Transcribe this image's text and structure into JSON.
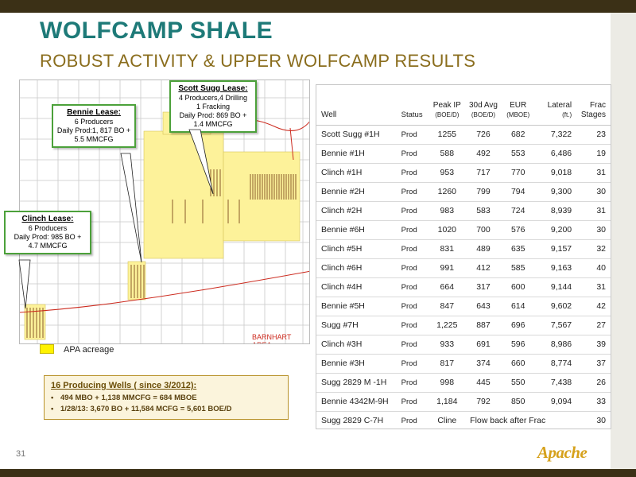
{
  "slide": {
    "title": "WOLFCAMP SHALE",
    "subtitle": "ROBUST ACTIVITY & UPPER WOLFCAMP RESULTS",
    "page_number": "31",
    "logo_text": "Apache",
    "accent_color": "#1e7a78",
    "subtitle_color": "#8a6d1d",
    "bar_color": "#3b3016"
  },
  "map": {
    "area_label": "BARNHART AREA",
    "legend_label": "APA acreage",
    "legend_color": "#fff200",
    "callouts": [
      {
        "title": "Scott Sugg Lease:",
        "lines": [
          "4 Producers,4 Drilling",
          "1 Fracking",
          "Daily Prod: 869 BO +",
          "1.4 MMCFG"
        ]
      },
      {
        "title": "Bennie Lease:",
        "lines": [
          "6 Producers",
          "Daily Prod:1, 817 BO +",
          "5.5 MMCFG"
        ]
      },
      {
        "title": "Clinch Lease:",
        "lines": [
          "6 Producers",
          "Daily Prod:  985 BO +",
          "4.7 MMCFG"
        ]
      }
    ]
  },
  "summary": {
    "heading": "16 Producing Wells ( since 3/2012):",
    "bullets": [
      "494 MBO + 1,138 MMCFG = 684 MBOE",
      "1/28/13:  3,670 BO + 11,584 MCFG = 5,601 BOE/D"
    ]
  },
  "table": {
    "headers": {
      "well": "Well",
      "status": "Status",
      "peak_ip": "Peak IP",
      "peak_ip_unit": "(BOE/D)",
      "avg30": "30d Avg",
      "avg30_unit": "(BOE/D)",
      "eur": "EUR",
      "eur_unit": "(MBOE)",
      "lateral": "Lateral",
      "lateral_unit": "(ft.)",
      "frac": "Frac",
      "frac2": "Stages"
    },
    "rows": [
      {
        "well": "Scott Sugg #1H",
        "status": "Prod",
        "peak_ip": "1255",
        "avg30": "726",
        "eur": "682",
        "lateral": "7,322",
        "frac": "23"
      },
      {
        "well": "Bennie #1H",
        "status": "Prod",
        "peak_ip": "588",
        "avg30": "492",
        "eur": "553",
        "lateral": "6,486",
        "frac": "19"
      },
      {
        "well": "Clinch #1H",
        "status": "Prod",
        "peak_ip": "953",
        "avg30": "717",
        "eur": "770",
        "lateral": "9,018",
        "frac": "31"
      },
      {
        "well": "Bennie #2H",
        "status": "Prod",
        "peak_ip": "1260",
        "avg30": "799",
        "eur": "794",
        "lateral": "9,300",
        "frac": "30"
      },
      {
        "well": "Clinch #2H",
        "status": "Prod",
        "peak_ip": "983",
        "avg30": "583",
        "eur": "724",
        "lateral": "8,939",
        "frac": "31"
      },
      {
        "well": "Bennie #6H",
        "status": "Prod",
        "peak_ip": "1020",
        "avg30": "700",
        "eur": "576",
        "lateral": "9,200",
        "frac": "30"
      },
      {
        "well": "Clinch #5H",
        "status": "Prod",
        "peak_ip": "831",
        "avg30": "489",
        "eur": "635",
        "lateral": "9,157",
        "frac": "32"
      },
      {
        "well": "Clinch #6H",
        "status": "Prod",
        "peak_ip": "991",
        "avg30": "412",
        "eur": "585",
        "lateral": "9,163",
        "frac": "40"
      },
      {
        "well": "Clinch #4H",
        "status": "Prod",
        "peak_ip": "664",
        "avg30": "317",
        "eur": "600",
        "lateral": "9,144",
        "frac": "31"
      },
      {
        "well": "Bennie #5H",
        "status": "Prod",
        "peak_ip": "847",
        "avg30": "643",
        "eur": "614",
        "lateral": "9,602",
        "frac": "42"
      },
      {
        "well": "Sugg #7H",
        "status": "Prod",
        "peak_ip": "1,225",
        "avg30": "887",
        "eur": "696",
        "lateral": "7,567",
        "frac": "27"
      },
      {
        "well": "Clinch #3H",
        "status": "Prod",
        "peak_ip": "933",
        "avg30": "691",
        "eur": "596",
        "lateral": "8,986",
        "frac": "39"
      },
      {
        "well": "Bennie #3H",
        "status": "Prod",
        "peak_ip": "817",
        "avg30": "374",
        "eur": "660",
        "lateral": "8,774",
        "frac": "37"
      },
      {
        "well": "Sugg 2829 M -1H",
        "status": "Prod",
        "peak_ip": "998",
        "avg30": "445",
        "eur": "550",
        "lateral": "7,438",
        "frac": "26"
      },
      {
        "well": "Bennie 4342M-9H",
        "status": "Prod",
        "peak_ip": "1,184",
        "avg30": "792",
        "eur": "850",
        "lateral": "9,094",
        "frac": "33"
      }
    ],
    "last_row": {
      "well": "Sugg 2829 C-7H",
      "status": "Prod",
      "peak_ip": "Cline",
      "note": "Flow back after Frac",
      "frac": "30"
    }
  }
}
